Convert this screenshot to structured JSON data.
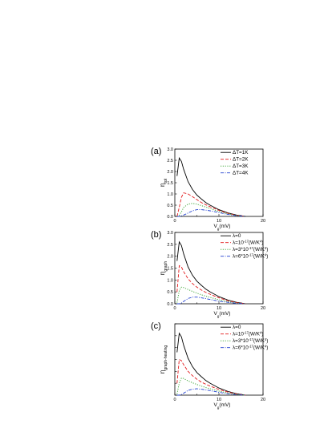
{
  "chart_data": [
    {
      "type": "line",
      "panel_label": "(a)",
      "ylabel": {
        "main": "η",
        "sub": "tot"
      },
      "xlabel": {
        "main": "V",
        "sub": "g",
        "rest": "(mV)"
      },
      "xlim": [
        0,
        20
      ],
      "ylim": [
        0,
        3.0
      ],
      "xticks": [
        "0",
        "10",
        "20"
      ],
      "yticks": [
        "0.0",
        "0.5",
        "1.0",
        "1.5",
        "2.0",
        "2.5",
        "3.0"
      ],
      "x": [
        0.5,
        1,
        1.5,
        2,
        3,
        4,
        5,
        6,
        7,
        8,
        10,
        12,
        14,
        16
      ],
      "series": [
        {
          "name": "ΔT=1K",
          "color": "#000000",
          "dash": "solid",
          "values": [
            1.8,
            2.6,
            2.45,
            2.1,
            1.55,
            1.2,
            0.95,
            0.78,
            0.62,
            0.5,
            0.3,
            0.16,
            0.06,
            0.0
          ]
        },
        {
          "name": "ΔT=2K",
          "color": "#e31a1c",
          "dash": "dash",
          "values": [
            0.0,
            0.4,
            0.85,
            1.05,
            1.0,
            0.88,
            0.75,
            0.62,
            0.52,
            0.43,
            0.27,
            0.14,
            0.05,
            0.0
          ]
        },
        {
          "name": "ΔT=3K",
          "color": "#33a02c",
          "dash": "dot",
          "values": [
            0.0,
            0.05,
            0.2,
            0.4,
            0.55,
            0.58,
            0.55,
            0.48,
            0.42,
            0.35,
            0.22,
            0.12,
            0.04,
            0.0
          ]
        },
        {
          "name": "ΔT=4K",
          "color": "#1f3fcf",
          "dash": "dashdot",
          "values": [
            0.0,
            0.0,
            0.02,
            0.06,
            0.15,
            0.25,
            0.3,
            0.3,
            0.28,
            0.25,
            0.17,
            0.09,
            0.03,
            0.0
          ]
        }
      ],
      "legend": [
        {
          "text": "ΔT=1K"
        },
        {
          "text": "ΔT=2K"
        },
        {
          "text": "ΔT=3K"
        },
        {
          "text": "ΔT=4K"
        }
      ]
    },
    {
      "type": "line",
      "panel_label": "(b)",
      "ylabel": {
        "main": "η",
        "sub": "graph"
      },
      "xlabel": {
        "main": "V",
        "sub": "g",
        "rest": "(mV)"
      },
      "xlim": [
        0,
        20
      ],
      "ylim": [
        0,
        3.0
      ],
      "xticks": [
        "0",
        "10",
        "20"
      ],
      "yticks": [
        "0.0",
        "0.5",
        "1.0",
        "1.5",
        "2.0",
        "2.5",
        "3.0"
      ],
      "x": [
        0.5,
        1,
        1.5,
        2,
        3,
        4,
        5,
        6,
        7,
        8,
        10,
        12,
        14,
        16
      ],
      "series": [
        {
          "name": "λ=0",
          "color": "#000000",
          "dash": "solid",
          "values": [
            1.8,
            2.6,
            2.45,
            2.1,
            1.55,
            1.2,
            0.95,
            0.78,
            0.62,
            0.5,
            0.3,
            0.16,
            0.06,
            0.0
          ]
        },
        {
          "name": "λ=10-17(W/K4)",
          "color": "#e31a1c",
          "dash": "dash",
          "values": [
            0.5,
            1.6,
            1.55,
            1.35,
            1.05,
            0.85,
            0.7,
            0.58,
            0.48,
            0.4,
            0.25,
            0.13,
            0.05,
            0.0
          ]
        },
        {
          "name": "λ=3*10-17(W/K4)",
          "color": "#33a02c",
          "dash": "dot",
          "values": [
            0.05,
            0.55,
            0.7,
            0.68,
            0.6,
            0.52,
            0.45,
            0.38,
            0.32,
            0.27,
            0.17,
            0.09,
            0.03,
            0.0
          ]
        },
        {
          "name": "λ=6*10-17(W/K4)",
          "color": "#1f3fcf",
          "dash": "dashdot",
          "values": [
            0.0,
            0.0,
            0.03,
            0.1,
            0.22,
            0.28,
            0.28,
            0.25,
            0.22,
            0.18,
            0.11,
            0.06,
            0.02,
            0.0
          ]
        }
      ],
      "legend": [
        {
          "base": "λ=0",
          "exp1": "",
          "mid": "",
          "exp2": ""
        },
        {
          "base": "λ=10",
          "exp1": "-17",
          "mid": "(W/K",
          "exp2": "4",
          "end": ")"
        },
        {
          "base": "λ=3*10",
          "exp1": "-17",
          "mid": "(W/K",
          "exp2": "4",
          "end": ")"
        },
        {
          "base": "λ=6*10",
          "exp1": "-17",
          "mid": "(W/K",
          "exp2": "4",
          "end": ")"
        }
      ]
    },
    {
      "type": "line",
      "panel_label": "(c)",
      "ylabel": {
        "main": "η",
        "sub": "graph-heating"
      },
      "xlabel": {
        "main": "V",
        "sub": "g",
        "rest": "(mV)"
      },
      "xlim": [
        0,
        20
      ],
      "ylim": [
        0,
        3.0
      ],
      "xticks": [
        "0",
        "10",
        "20"
      ],
      "yticks": [],
      "x": [
        0.5,
        1,
        1.5,
        2,
        3,
        4,
        5,
        6,
        7,
        8,
        10,
        12,
        14,
        16
      ],
      "series": [
        {
          "name": "λ=0",
          "color": "#000000",
          "dash": "solid",
          "values": [
            1.8,
            2.6,
            2.45,
            2.1,
            1.55,
            1.2,
            0.95,
            0.78,
            0.62,
            0.5,
            0.3,
            0.16,
            0.06,
            0.0
          ]
        },
        {
          "name": "λ=10-17(W/K4)",
          "color": "#e31a1c",
          "dash": "dash",
          "values": [
            0.5,
            1.5,
            1.45,
            1.28,
            1.0,
            0.82,
            0.67,
            0.55,
            0.46,
            0.38,
            0.24,
            0.13,
            0.05,
            0.0
          ]
        },
        {
          "name": "λ=3*10-17(W/K4)",
          "color": "#33a02c",
          "dash": "dot",
          "values": [
            0.05,
            0.5,
            0.72,
            0.7,
            0.6,
            0.52,
            0.45,
            0.38,
            0.32,
            0.27,
            0.17,
            0.09,
            0.03,
            0.0
          ]
        },
        {
          "name": "λ=6*10-17(W/K4)",
          "color": "#1f3fcf",
          "dash": "dashdot",
          "values": [
            0.0,
            0.0,
            0.02,
            0.08,
            0.2,
            0.25,
            0.27,
            0.25,
            0.22,
            0.19,
            0.12,
            0.06,
            0.02,
            0.0
          ]
        }
      ],
      "legend": [
        {
          "base": "λ=0",
          "exp1": "",
          "mid": "",
          "exp2": ""
        },
        {
          "base": "λ=10",
          "exp1": "-17",
          "mid": "(W/K",
          "exp2": "4",
          "end": ")"
        },
        {
          "base": "λ=3*10",
          "exp1": "-17",
          "mid": "(W/K",
          "exp2": "4",
          "end": ")"
        },
        {
          "base": "λ=6*10",
          "exp1": "-17",
          "mid": "(W/K",
          "exp2": "4",
          "end": ")"
        }
      ]
    }
  ]
}
